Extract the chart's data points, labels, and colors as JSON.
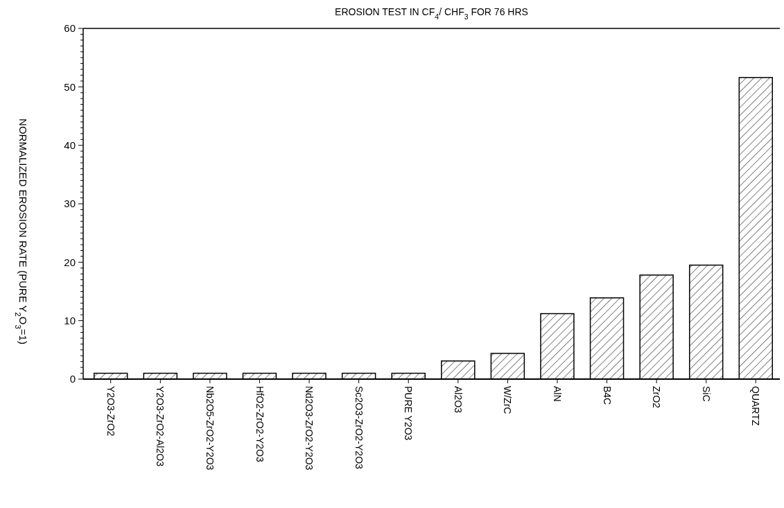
{
  "chart_data": {
    "type": "bar",
    "title": "EROSION TEST IN CF$_{4}$/ CHF$_{3}$ FOR 76 HRS",
    "ylabel": "NORMALIZED EROSION RATE (PURE Y$_{2}$O$_{3}$=1)",
    "categories": [
      "Y2O3-ZrO2",
      "Y2O3-ZrO2-Al2O3",
      "Nb2O5-ZrO2-Y2O3",
      "HfO2-ZrO2-Y2O3",
      "Nd2O3-ZrO2-Y2O3",
      "Sc2O3-ZrO2-Y2O3",
      "PURE Y2O3",
      "Al2O3",
      "W/ZrC",
      "AlN",
      "B4C",
      "ZrO2",
      "SiC",
      "QUARTZ"
    ],
    "values": [
      1,
      1,
      1,
      1,
      1,
      1,
      1,
      3.1,
      4.4,
      11.2,
      13.9,
      17.8,
      19.5,
      51.6
    ],
    "color": "#ffffff",
    "ylim": [
      0,
      60
    ],
    "yticks": [
      0,
      {
        "value": 1,
        "label": null
      },
      {
        "value": 2,
        "label": null
      },
      {
        "value": 3,
        "label": null
      },
      {
        "value": 4,
        "label": null
      },
      {
        "value": 5,
        "label": null
      },
      {
        "value": 6,
        "label": null
      },
      {
        "value": 7,
        "label": null
      },
      {
        "value": 8,
        "label": null
      },
      {
        "value": 9,
        "label": null
      },
      10,
      {
        "value": 11,
        "label": null
      },
      {
        "value": 12,
        "label": null
      },
      {
        "value": 13,
        "label": null
      },
      {
        "value": 14,
        "label": null
      },
      {
        "value": 15,
        "label": null
      },
      {
        "value": 16,
        "label": null
      },
      {
        "value": 17,
        "label": null
      },
      {
        "value": 18,
        "label": null
      },
      {
        "value": 19,
        "label": null
      },
      20,
      {
        "value": 21,
        "label": null
      },
      {
        "value": 22,
        "label": null
      },
      {
        "value": 23,
        "label": null
      },
      {
        "value": 24,
        "label": null
      },
      {
        "value": 25,
        "label": null
      },
      {
        "value": 26,
        "label": null
      },
      {
        "value": 27,
        "label": null
      },
      {
        "value": 28,
        "label": null
      },
      {
        "value": 29,
        "label": null
      },
      30,
      {
        "value": 31,
        "label": null
      },
      {
        "value": 32,
        "label": null
      },
      {
        "value": 33,
        "label": null
      },
      {
        "value": 34,
        "label": null
      },
      {
        "value": 35,
        "label": null
      },
      {
        "value": 36,
        "label": null
      },
      {
        "value": 37,
        "label": null
      },
      {
        "value": 38,
        "label": null
      },
      {
        "value": 39,
        "label": null
      },
      40,
      {
        "value": 41,
        "label": null
      },
      {
        "value": 42,
        "label": null
      },
      {
        "value": 43,
        "label": null
      },
      {
        "value": 44,
        "label": null
      },
      {
        "value": 45,
        "label": null
      },
      {
        "value": 46,
        "label": null
      },
      {
        "value": 47,
        "label": null
      },
      {
        "value": 48,
        "label": null
      },
      {
        "value": 49,
        "label": null
      },
      50,
      {
        "value": 51,
        "label": null
      },
      {
        "value": 52,
        "label": null
      },
      {
        "value": 53,
        "label": null
      },
      {
        "value": 54,
        "label": null
      },
      {
        "value": 55,
        "label": null
      },
      {
        "value": 56,
        "label": null
      },
      {
        "value": 57,
        "label": null
      },
      {
        "value": 58,
        "label": null
      },
      {
        "value": 59,
        "label": null
      },
      60
    ],
    "grid": false
  }
}
